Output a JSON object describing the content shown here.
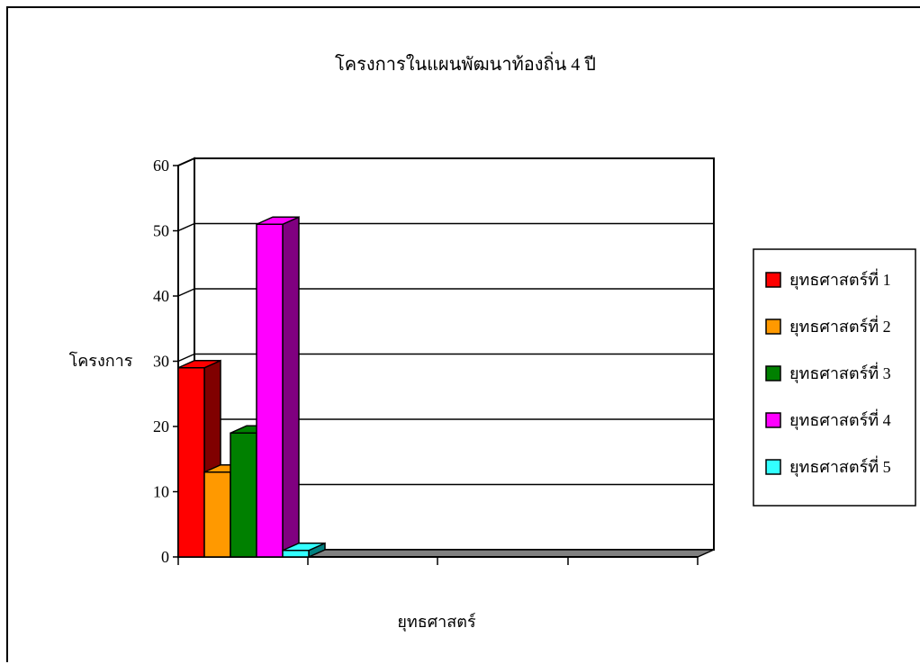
{
  "chart_data": {
    "type": "bar",
    "title": "โครงการในแผนพัฒนาท้องถิ่น 4 ปี",
    "xlabel": "ยุทธศาสตร์",
    "ylabel": "โครงการ",
    "ylim": [
      0,
      60
    ],
    "yticks": [
      "0",
      "10",
      "20",
      "30",
      "40",
      "50",
      "60"
    ],
    "grid": true,
    "legend_position": "right",
    "three_d": true,
    "series": [
      {
        "name": "ยุทธศาสตร์ที่ 1",
        "value": 29,
        "color": "#ff0000",
        "side_color": "#800000"
      },
      {
        "name": "ยุทธศาสตร์ที่ 2",
        "value": 13,
        "color": "#ff9900",
        "side_color": "#b36b00"
      },
      {
        "name": "ยุทธศาสตร์ที่ 3",
        "value": 19,
        "color": "#008000",
        "side_color": "#004000"
      },
      {
        "name": "ยุทธศาสตร์ที่ 4",
        "value": 51,
        "color": "#ff00ff",
        "side_color": "#800080"
      },
      {
        "name": "ยุทธศาสตร์ที่ 5",
        "value": 1,
        "color": "#33ffff",
        "side_color": "#008080"
      }
    ]
  }
}
